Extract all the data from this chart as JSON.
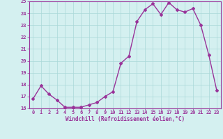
{
  "x": [
    0,
    1,
    2,
    3,
    4,
    5,
    6,
    7,
    8,
    9,
    10,
    11,
    12,
    13,
    14,
    15,
    16,
    17,
    18,
    19,
    20,
    21,
    22,
    23
  ],
  "y": [
    16.8,
    17.9,
    17.2,
    16.7,
    16.1,
    16.1,
    16.1,
    16.3,
    16.5,
    17.0,
    17.4,
    19.8,
    20.4,
    23.3,
    24.3,
    24.8,
    23.9,
    24.9,
    24.3,
    24.1,
    24.4,
    23.0,
    20.5,
    17.5
  ],
  "line_color": "#993399",
  "marker": "D",
  "marker_size": 2.0,
  "bg_color": "#d4f0f0",
  "grid_color": "#aad8d8",
  "xlabel": "Windchill (Refroidissement éolien,°C)",
  "xlabel_color": "#993399",
  "tick_color": "#993399",
  "ylim": [
    16,
    25
  ],
  "xlim": [
    -0.5,
    23.5
  ],
  "yticks": [
    16,
    17,
    18,
    19,
    20,
    21,
    22,
    23,
    24,
    25
  ],
  "xticks": [
    0,
    1,
    2,
    3,
    4,
    5,
    6,
    7,
    8,
    9,
    10,
    11,
    12,
    13,
    14,
    15,
    16,
    17,
    18,
    19,
    20,
    21,
    22,
    23
  ],
  "linewidth": 1.0,
  "spine_color": "#993399"
}
